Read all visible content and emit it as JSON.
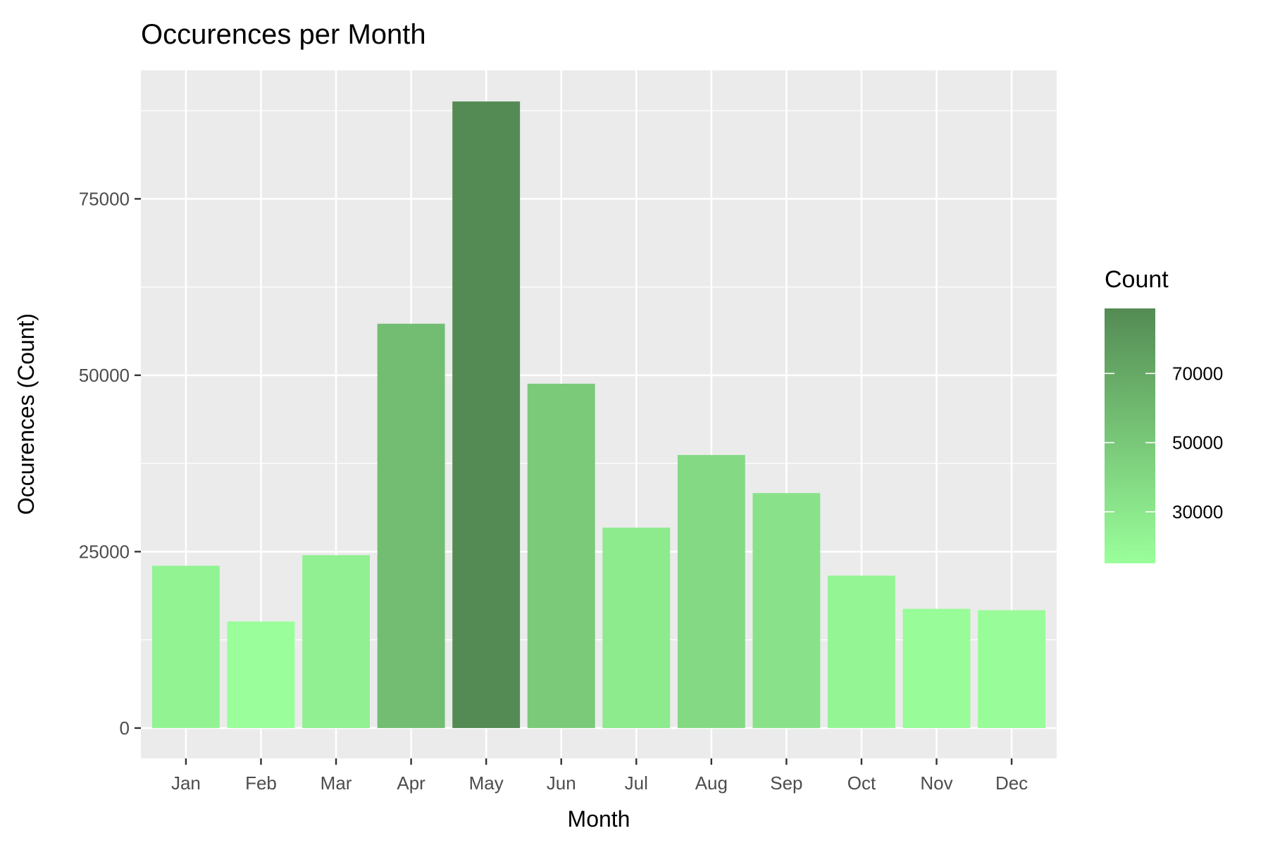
{
  "chart_data": {
    "type": "bar",
    "title": "Occurences per Month",
    "xlabel": "Month",
    "ylabel": "Occurences (Count)",
    "categories": [
      "Jan",
      "Feb",
      "Mar",
      "Apr",
      "May",
      "Jun",
      "Jul",
      "Aug",
      "Sep",
      "Oct",
      "Nov",
      "Dec"
    ],
    "values": [
      23000,
      15100,
      24500,
      57300,
      88800,
      48800,
      28400,
      38700,
      33300,
      21600,
      16900,
      16700
    ],
    "ylim": [
      -4300,
      93200
    ],
    "yticks": [
      0,
      25000,
      50000,
      75000
    ],
    "ytick_labels": [
      "0",
      "25000",
      "50000",
      "75000"
    ],
    "grid": true,
    "legend": {
      "title": "Count",
      "placement": "right",
      "type": "colorbar",
      "range": [
        15100,
        88800
      ],
      "ticks": [
        30000,
        50000,
        70000
      ],
      "tick_labels": [
        "30000",
        "50000",
        "70000"
      ],
      "color_low": "#9aff9a",
      "color_high": "#548b54"
    },
    "colors": {
      "panel_background": "#ebebeb",
      "grid": "#ffffff",
      "axis_ticks": "#333333",
      "tick_text": "#4d4d4d"
    }
  }
}
